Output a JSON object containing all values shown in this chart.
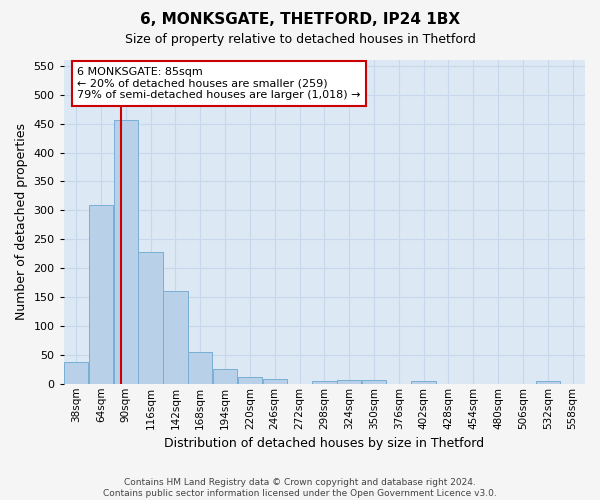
{
  "title1": "6, MONKSGATE, THETFORD, IP24 1BX",
  "title2": "Size of property relative to detached houses in Thetford",
  "xlabel": "Distribution of detached houses by size in Thetford",
  "ylabel": "Number of detached properties",
  "footer1": "Contains HM Land Registry data © Crown copyright and database right 2024.",
  "footer2": "Contains public sector information licensed under the Open Government Licence v3.0.",
  "bar_labels": [
    "38sqm",
    "64sqm",
    "90sqm",
    "116sqm",
    "142sqm",
    "168sqm",
    "194sqm",
    "220sqm",
    "246sqm",
    "272sqm",
    "298sqm",
    "324sqm",
    "350sqm",
    "376sqm",
    "402sqm",
    "428sqm",
    "454sqm",
    "480sqm",
    "506sqm",
    "532sqm",
    "558sqm"
  ],
  "bar_values": [
    38,
    310,
    457,
    228,
    160,
    55,
    25,
    11,
    9,
    0,
    5,
    6,
    6,
    0,
    5,
    0,
    0,
    0,
    0,
    5,
    0
  ],
  "bar_color": "#b8d0e8",
  "bar_edge_color": "#7aaed6",
  "grid_color": "#c8d8ec",
  "background_color": "#dce8f4",
  "annotation_text_line1": "6 MONKSGATE: 85sqm",
  "annotation_text_line2": "← 20% of detached houses are smaller (259)",
  "annotation_text_line3": "79% of semi-detached houses are larger (1,018) →",
  "vline_color": "#cc0000",
  "ylim": [
    0,
    560
  ],
  "yticks": [
    0,
    50,
    100,
    150,
    200,
    250,
    300,
    350,
    400,
    450,
    500,
    550
  ],
  "annotation_box_color": "#ffffff",
  "annotation_box_edge": "#cc0000",
  "fig_bg_color": "#f5f5f5"
}
